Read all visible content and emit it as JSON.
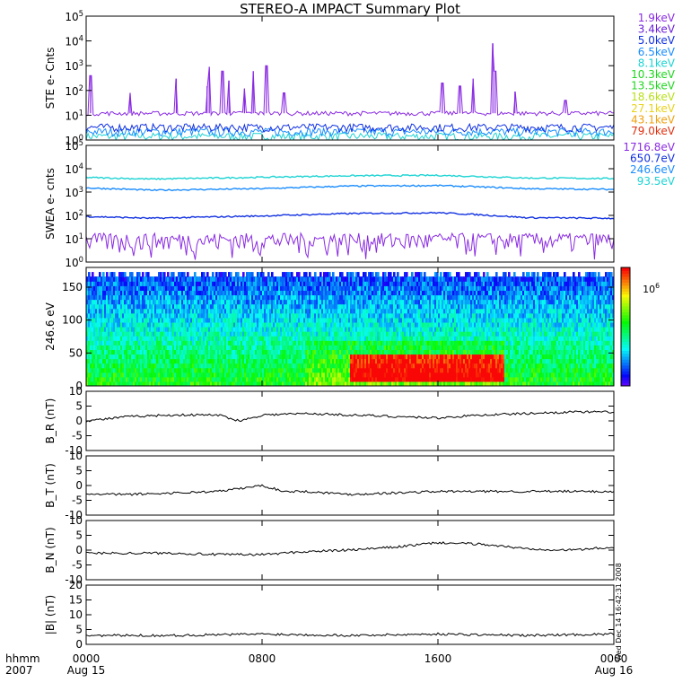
{
  "title": "STEREO-A IMPACT Summary Plot",
  "colors": {
    "purple": "#8a2be2",
    "violet": "#6a1fd6",
    "blue": "#1030e0",
    "azure": "#1a8cff",
    "cyan": "#1cd3d3",
    "green": "#1fd61f",
    "yellowgreen": "#b8e01a",
    "yellow": "#e8d21a",
    "orange": "#f0a010",
    "red": "#e03010"
  },
  "x_axis": {
    "label_hhmm": "hhmm",
    "label_year": "2007",
    "ticks": [
      "0000",
      "0800",
      "1600",
      "0000"
    ],
    "dates": [
      "Aug 15",
      "",
      "",
      "Aug 16"
    ],
    "range_hours": [
      0,
      24
    ]
  },
  "stamp": "Wed Dec 14 16:42:31 2008",
  "chart_data": [
    {
      "type": "line",
      "ylabel": "STE e- Cnts",
      "ylim": [
        1,
        100000
      ],
      "yscale": "log",
      "y_tick_labels": [
        "10^0",
        "10^1",
        "10^2",
        "10^3",
        "10^4",
        "10^5"
      ],
      "legend": [
        {
          "label": "1.9keV",
          "color": "#8a2be2"
        },
        {
          "label": "3.4keV",
          "color": "#6a1fd6"
        },
        {
          "label": "5.0keV",
          "color": "#1030e0"
        },
        {
          "label": "6.5keV",
          "color": "#1a8cff"
        },
        {
          "label": "8.1keV",
          "color": "#1cd3d3"
        },
        {
          "label": "10.3keV",
          "color": "#1fd61f"
        },
        {
          "label": "13.5keV",
          "color": "#1fd61f"
        },
        {
          "label": "18.6keV",
          "color": "#b8e01a"
        },
        {
          "label": "27.1keV",
          "color": "#e8d21a"
        },
        {
          "label": "43.1keV",
          "color": "#f0a010"
        },
        {
          "label": "79.0keV",
          "color": "#e03010"
        }
      ],
      "series": [
        {
          "name": "1.9keV",
          "baseline": 12,
          "spikes": [
            [
              0.2,
              400
            ],
            [
              2.0,
              80
            ],
            [
              4.1,
              300
            ],
            [
              5.5,
              150
            ],
            [
              5.6,
              900
            ],
            [
              6.2,
              600
            ],
            [
              6.5,
              250
            ],
            [
              7.2,
              120
            ],
            [
              7.6,
              600
            ],
            [
              8.2,
              1000
            ],
            [
              9.0,
              80
            ],
            [
              16.2,
              200
            ],
            [
              17.0,
              150
            ],
            [
              17.6,
              300
            ],
            [
              18.5,
              8000
            ],
            [
              18.6,
              600
            ],
            [
              19.5,
              90
            ],
            [
              21.8,
              40
            ]
          ]
        },
        {
          "name": "5.0keV",
          "baseline": 3
        },
        {
          "name": "8.1keV",
          "baseline": 1.5
        }
      ]
    },
    {
      "type": "line",
      "ylabel": "SWEA e- cnts",
      "ylim": [
        1,
        100000
      ],
      "yscale": "log",
      "y_tick_labels": [
        "10^0",
        "10^1",
        "10^2",
        "10^3",
        "10^4",
        "10^5"
      ],
      "legend": [
        {
          "label": "1716.8eV",
          "color": "#8a2be2"
        },
        {
          "label": "650.7eV",
          "color": "#1030e0"
        },
        {
          "label": "246.6eV",
          "color": "#1a8cff"
        },
        {
          "label": "93.5eV",
          "color": "#1cd3d3"
        }
      ],
      "series": [
        {
          "name": "93.5eV",
          "x": [
            0,
            3,
            8,
            12,
            16,
            20,
            24
          ],
          "y": [
            4200,
            3600,
            4300,
            5000,
            5200,
            4000,
            3800
          ]
        },
        {
          "name": "246.6eV",
          "x": [
            0,
            3,
            8,
            12,
            16,
            20,
            24
          ],
          "y": [
            1500,
            1200,
            1400,
            1800,
            1900,
            1400,
            1300
          ]
        },
        {
          "name": "650.7eV",
          "x": [
            0,
            3,
            8,
            12,
            16,
            20,
            24
          ],
          "y": [
            90,
            75,
            95,
            120,
            130,
            80,
            75
          ]
        },
        {
          "name": "1716.8eV",
          "x": [
            0,
            24
          ],
          "y": [
            8,
            8
          ]
        }
      ]
    },
    {
      "type": "heatmap",
      "ylabel": "246.6 eV",
      "ylim": [
        0,
        180
      ],
      "y_tick_labels": [
        "0",
        "50",
        "100",
        "150"
      ],
      "colorbar_label": "10^6",
      "hot_region": {
        "x": [
          12,
          19
        ],
        "y": [
          5,
          50
        ]
      }
    },
    {
      "type": "line",
      "ylabel": "B_R (nT)",
      "ylim": [
        -10,
        10
      ],
      "y_tick_labels": [
        "-10",
        "-5",
        "0",
        "5",
        "10"
      ],
      "x": [
        0,
        2,
        4,
        6,
        7,
        8,
        10,
        12,
        14,
        16,
        18,
        20,
        22,
        24
      ],
      "y": [
        0,
        1.5,
        2,
        2,
        0,
        2,
        2.5,
        2,
        1.5,
        1,
        2,
        2.5,
        3,
        3
      ]
    },
    {
      "type": "line",
      "ylabel": "B_T (nT)",
      "ylim": [
        -10,
        10
      ],
      "y_tick_labels": [
        "-10",
        "-5",
        "0",
        "5",
        "10"
      ],
      "x": [
        0,
        2,
        4,
        6,
        8,
        9,
        10,
        12,
        14,
        16,
        18,
        20,
        22,
        24
      ],
      "y": [
        -3,
        -3,
        -2.5,
        -2,
        0,
        -2,
        -2,
        -3,
        -2.5,
        -2,
        -2,
        -2,
        -2,
        -2
      ]
    },
    {
      "type": "line",
      "ylabel": "B_N (nT)",
      "ylim": [
        -10,
        10
      ],
      "y_tick_labels": [
        "-10",
        "-5",
        "0",
        "5",
        "10"
      ],
      "x": [
        0,
        2,
        4,
        6,
        8,
        10,
        12,
        14,
        16,
        18,
        20,
        22,
        24
      ],
      "y": [
        -1,
        -1,
        -1,
        -1.5,
        -1.5,
        -0.5,
        0,
        1,
        2.5,
        2,
        0.5,
        0,
        1
      ]
    },
    {
      "type": "line",
      "ylabel": "|B| (nT)",
      "ylim": [
        0,
        20
      ],
      "y_tick_labels": [
        "0",
        "5",
        "10",
        "15",
        "20"
      ],
      "x": [
        0,
        4,
        8,
        12,
        16,
        20,
        24
      ],
      "y": [
        3,
        3,
        3.5,
        3,
        3.5,
        3,
        3.5
      ]
    }
  ]
}
